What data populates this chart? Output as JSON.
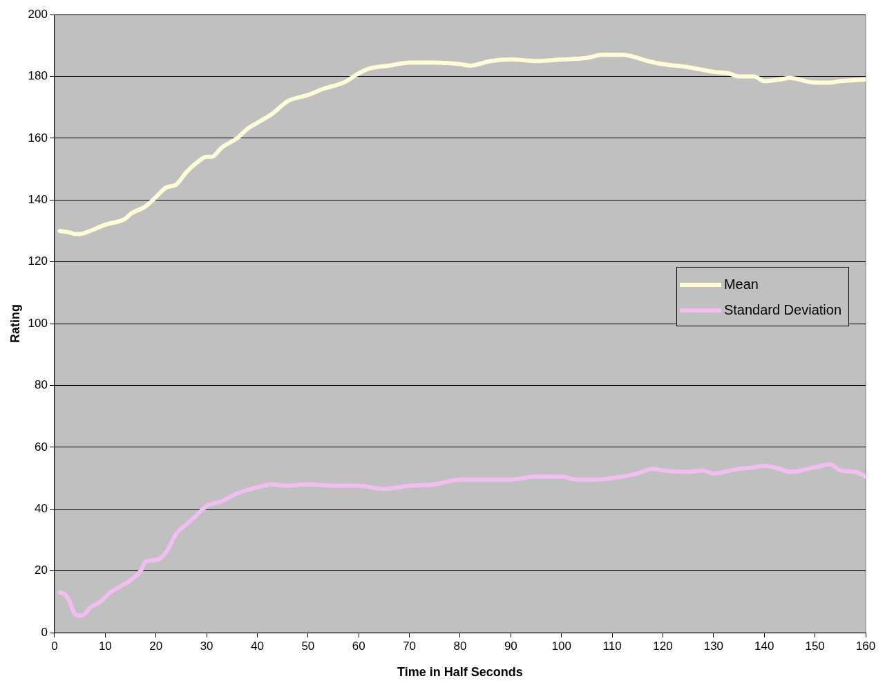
{
  "chart_data": {
    "type": "line",
    "xlabel": "Time in Half Seconds",
    "ylabel": "Rating",
    "xlim": [
      0,
      160
    ],
    "xticks": [
      0,
      10,
      20,
      30,
      40,
      50,
      60,
      70,
      80,
      90,
      100,
      110,
      120,
      130,
      140,
      150,
      160
    ],
    "ylim": [
      0,
      200
    ],
    "yticks": [
      0,
      20,
      40,
      60,
      80,
      100,
      120,
      140,
      160,
      180,
      200
    ],
    "grid": "y",
    "legend": "right",
    "marker": "none",
    "line_style": "solid",
    "series": [
      {
        "name": "Mean",
        "color": "#fffdd8",
        "x": [
          1,
          3,
          4,
          5,
          7,
          10,
          14,
          15,
          18,
          20,
          22,
          24,
          26,
          28,
          30,
          31,
          33,
          36,
          38,
          40,
          43,
          46,
          50,
          53,
          57,
          60,
          62,
          66,
          70,
          75,
          80,
          82,
          86,
          90,
          95,
          100,
          105,
          108,
          112,
          115,
          117,
          120,
          125,
          130,
          133,
          135,
          138,
          140,
          143,
          145,
          150,
          153,
          155,
          160
        ],
        "values": [
          130,
          129.5,
          129,
          129,
          130,
          132,
          134,
          135.5,
          138,
          141,
          144,
          145,
          149,
          152,
          154,
          154,
          157,
          160,
          163,
          165,
          168,
          172,
          174,
          176,
          178,
          181,
          182.5,
          183.5,
          184.5,
          184.5,
          184,
          183.5,
          185,
          185.5,
          185,
          185.5,
          186,
          187,
          187,
          186,
          185,
          184,
          183,
          181.5,
          181,
          180,
          180,
          178.5,
          179,
          179.5,
          178,
          178,
          178.5,
          179
        ]
      },
      {
        "name": "Standard Deviation",
        "color": "#f2bef2",
        "x": [
          1,
          2,
          3,
          4,
          5,
          6,
          7,
          9,
          11,
          13,
          15,
          17,
          18,
          20,
          22,
          24,
          26,
          28,
          30,
          33,
          36,
          40,
          43,
          46,
          50,
          55,
          60,
          65,
          70,
          75,
          80,
          85,
          90,
          95,
          100,
          103,
          107,
          110,
          115,
          118,
          120,
          125,
          128,
          130,
          135,
          138,
          140,
          143,
          145,
          150,
          153,
          155,
          158,
          160
        ],
        "values": [
          13,
          12.5,
          10,
          6,
          5.5,
          6,
          8,
          10,
          13,
          15,
          17,
          20,
          23,
          23.5,
          26,
          32,
          35,
          38,
          41,
          42.5,
          45,
          47,
          48,
          47.5,
          48,
          47.5,
          47.5,
          46.5,
          47.5,
          48,
          49.5,
          49.5,
          49.5,
          50.5,
          50.5,
          49.5,
          49.5,
          50,
          51.5,
          53,
          52.5,
          52,
          52.5,
          51.5,
          53,
          53.5,
          54,
          53,
          52,
          53.5,
          54.5,
          52.5,
          52,
          50.5
        ]
      }
    ]
  }
}
